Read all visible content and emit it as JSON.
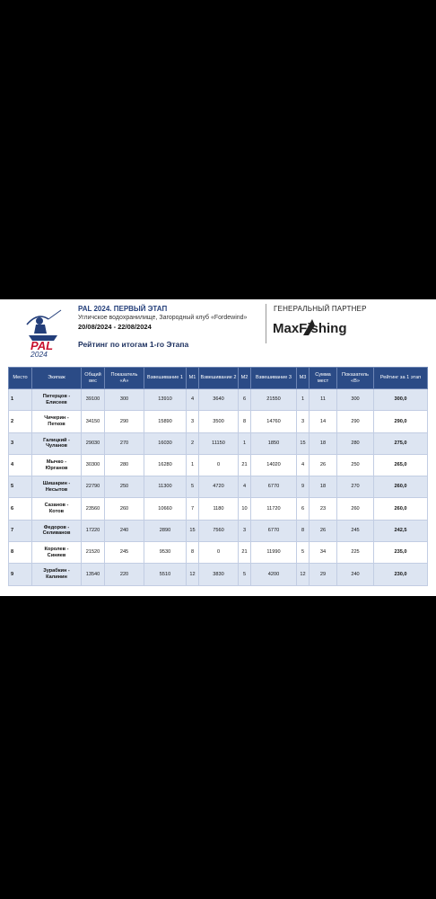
{
  "header": {
    "title": "PAL 2024. ПЕРВЫЙ ЭТАП",
    "location": "Угличское водохранилище, Загородный клуб «Fordewind»",
    "dates": "20/08/2024 - 22/08/2024",
    "rating_title": "Рейтинг по итогам 1-го Этапа",
    "partner_label": "ГЕНЕРАЛЬНЫЙ ПАРТНЕР",
    "logo_text": "PAL",
    "logo_year": "2024",
    "brand_name": "MaxFishing"
  },
  "table": {
    "columns": [
      "Место",
      "Экипаж",
      "Общий вес",
      "Показатель «А»",
      "Взвешивание 1",
      "M1",
      "Взвешивание 2",
      "M2",
      "Взвешивание 3",
      "M3",
      "Сумма мест",
      "Показатель «В»",
      "Рейтинг за 1 этап"
    ],
    "rows": [
      {
        "place": "1",
        "crew1": "Питерцов -",
        "crew2": "Елисеев",
        "total": "39100",
        "a": "300",
        "w1": "13910",
        "m1": "4",
        "w2": "3640",
        "m2": "6",
        "w3": "21550",
        "m3": "1",
        "sum": "11",
        "b": "300",
        "rating": "300,0"
      },
      {
        "place": "2",
        "crew1": "Чичерин -",
        "crew2": "Петков",
        "total": "34150",
        "a": "290",
        "w1": "15890",
        "m1": "3",
        "w2": "3500",
        "m2": "8",
        "w3": "14760",
        "m3": "3",
        "sum": "14",
        "b": "290",
        "rating": "290,0"
      },
      {
        "place": "3",
        "crew1": "Галицкий -",
        "crew2": "Чуланов",
        "total": "29030",
        "a": "270",
        "w1": "16030",
        "m1": "2",
        "w2": "11150",
        "m2": "1",
        "w3": "1850",
        "m3": "15",
        "sum": "18",
        "b": "280",
        "rating": "275,0"
      },
      {
        "place": "4",
        "crew1": "Мычко -",
        "crew2": "Юрганов",
        "total": "30300",
        "a": "280",
        "w1": "16280",
        "m1": "1",
        "w2": "0",
        "m2": "21",
        "w3": "14020",
        "m3": "4",
        "sum": "26",
        "b": "250",
        "rating": "265,0"
      },
      {
        "place": "5",
        "crew1": "Шишарин -",
        "crew2": "Несытов",
        "total": "22790",
        "a": "250",
        "w1": "11300",
        "m1": "5",
        "w2": "4720",
        "m2": "4",
        "w3": "6770",
        "m3": "9",
        "sum": "18",
        "b": "270",
        "rating": "260,0"
      },
      {
        "place": "6",
        "crew1": "Сазанов -",
        "crew2": "Котов",
        "total": "23560",
        "a": "260",
        "w1": "10660",
        "m1": "7",
        "w2": "1180",
        "m2": "10",
        "w3": "11720",
        "m3": "6",
        "sum": "23",
        "b": "260",
        "rating": "260,0"
      },
      {
        "place": "7",
        "crew1": "Федоров -",
        "crew2": "Селиванов",
        "total": "17220",
        "a": "240",
        "w1": "2890",
        "m1": "15",
        "w2": "7560",
        "m2": "3",
        "w3": "6770",
        "m3": "8",
        "sum": "26",
        "b": "245",
        "rating": "242,5"
      },
      {
        "place": "8",
        "crew1": "Королев -",
        "crew2": "Синяев",
        "total": "21520",
        "a": "245",
        "w1": "9530",
        "m1": "8",
        "w2": "0",
        "m2": "21",
        "w3": "11990",
        "m3": "5",
        "sum": "34",
        "b": "225",
        "rating": "235,0"
      },
      {
        "place": "9",
        "crew1": "Зурабкин -",
        "crew2": "Калинин",
        "total": "13540",
        "a": "220",
        "w1": "5510",
        "m1": "12",
        "w2": "3830",
        "m2": "5",
        "w3": "4200",
        "m3": "12",
        "sum": "29",
        "b": "240",
        "rating": "230,0"
      }
    ]
  },
  "colors": {
    "header_bg": "#2b4b86",
    "row_alt": "#dde5f2",
    "accent_red": "#c8102e",
    "navy": "#233e7a"
  }
}
